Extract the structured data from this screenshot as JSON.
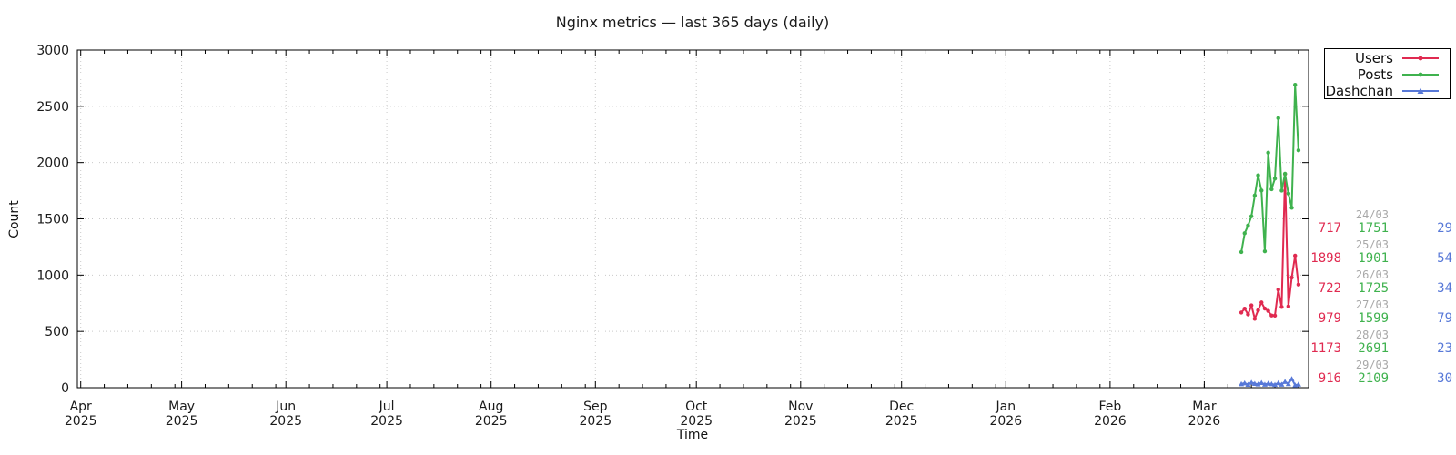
{
  "page": {
    "background": "#ffffff"
  },
  "chart_data": {
    "type": "line",
    "title": "Nginx metrics — last 365 days (daily)",
    "xlabel": "Time",
    "ylabel": "Count",
    "ylim": [
      0,
      3000
    ],
    "ytick_step": 500,
    "grid": true,
    "legend_position": "outside-top-right",
    "axis_color": "#000000",
    "grid_color": "#c9c9c9",
    "x_axis": {
      "start": "2025-03-31",
      "end": "2026-04-01",
      "months": [
        {
          "month": "Apr",
          "year": "2025",
          "date": "2025-04-01"
        },
        {
          "month": "May",
          "year": "2025",
          "date": "2025-05-01"
        },
        {
          "month": "Jun",
          "year": "2025",
          "date": "2025-06-01"
        },
        {
          "month": "Jul",
          "year": "2025",
          "date": "2025-07-01"
        },
        {
          "month": "Aug",
          "year": "2025",
          "date": "2025-08-01"
        },
        {
          "month": "Sep",
          "year": "2025",
          "date": "2025-09-01"
        },
        {
          "month": "Oct",
          "year": "2025",
          "date": "2025-10-01"
        },
        {
          "month": "Nov",
          "year": "2025",
          "date": "2025-11-01"
        },
        {
          "month": "Dec",
          "year": "2025",
          "date": "2025-12-01"
        },
        {
          "month": "Jan",
          "year": "2026",
          "date": "2026-01-01"
        },
        {
          "month": "Feb",
          "year": "2026",
          "date": "2026-02-01"
        },
        {
          "month": "Mar",
          "year": "2026",
          "date": "2026-03-01"
        }
      ]
    },
    "dates": [
      "2026-03-12",
      "2026-03-13",
      "2026-03-14",
      "2026-03-15",
      "2026-03-16",
      "2026-03-17",
      "2026-03-18",
      "2026-03-19",
      "2026-03-20",
      "2026-03-21",
      "2026-03-22",
      "2026-03-23",
      "2026-03-24",
      "2026-03-25",
      "2026-03-26",
      "2026-03-27",
      "2026-03-28",
      "2026-03-29"
    ],
    "series": [
      {
        "name": "Users",
        "color": "#e02a50",
        "marker": "circle",
        "values": [
          668,
          702,
          651,
          731,
          612,
          688,
          757,
          703,
          682,
          641,
          640,
          872,
          717,
          1898,
          722,
          979,
          1173,
          916
        ]
      },
      {
        "name": "Posts",
        "color": "#3fb24e",
        "marker": "circle",
        "values": [
          1205,
          1372,
          1441,
          1523,
          1708,
          1887,
          1752,
          1212,
          2088,
          1763,
          1858,
          2395,
          1751,
          1901,
          1725,
          1599,
          2691,
          2109
        ]
      },
      {
        "name": "Dashchan",
        "color": "#5879d8",
        "marker": "triangle",
        "values": [
          33,
          41,
          28,
          47,
          36,
          31,
          44,
          29,
          38,
          33,
          27,
          42,
          29,
          54,
          34,
          79,
          23,
          30
        ]
      }
    ],
    "value_table": {
      "date_color": "#a8a8a8",
      "rows": [
        {
          "date": "24/03",
          "users": "717",
          "posts": "1751",
          "dashchan": "29"
        },
        {
          "date": "25/03",
          "users": "1898",
          "posts": "1901",
          "dashchan": "54"
        },
        {
          "date": "26/03",
          "users": "722",
          "posts": "1725",
          "dashchan": "34"
        },
        {
          "date": "27/03",
          "users": "979",
          "posts": "1599",
          "dashchan": "79"
        },
        {
          "date": "28/03",
          "users": "1173",
          "posts": "2691",
          "dashchan": "23"
        },
        {
          "date": "29/03",
          "users": "916",
          "posts": "2109",
          "dashchan": "30"
        }
      ]
    }
  }
}
